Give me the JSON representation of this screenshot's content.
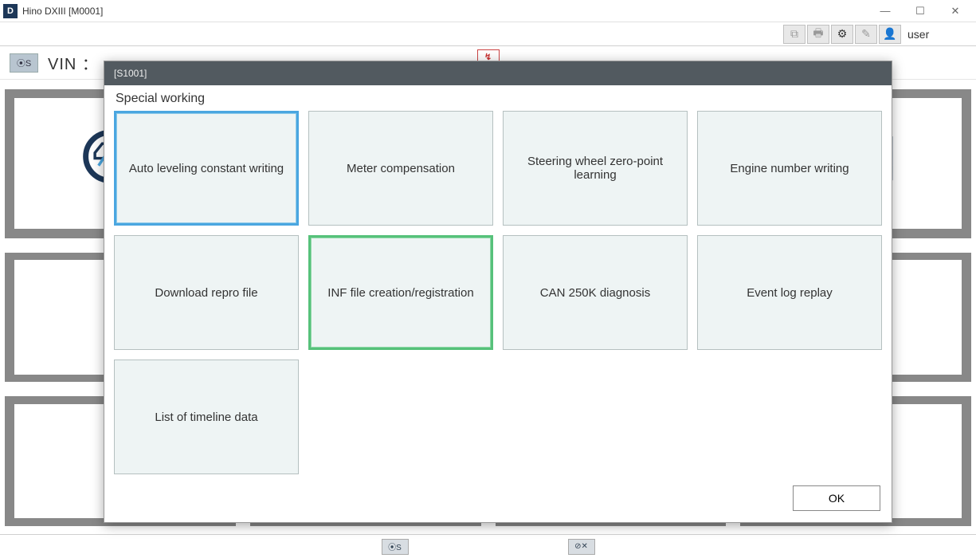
{
  "window": {
    "app_icon_letter": "D",
    "title": "Hino DXIII [M0001]"
  },
  "toolbar": {
    "icons": [
      {
        "name": "chart-icon",
        "glyph": "⧉",
        "dim": true
      },
      {
        "name": "print-icon",
        "glyph": "🖶",
        "dim": true
      },
      {
        "name": "gear-icon",
        "glyph": "⚙",
        "dim": false
      },
      {
        "name": "note-icon",
        "glyph": "✎",
        "dim": true
      },
      {
        "name": "user-icon",
        "glyph": "👤",
        "dim": false,
        "user": true
      }
    ],
    "user_label": "user"
  },
  "vin": {
    "icon_text": "⦿S",
    "label": "VIN ："
  },
  "center_tab": {
    "glyph": "↯"
  },
  "statusbar": {
    "left": "⦿S",
    "right": "⊘✕"
  },
  "modal": {
    "header_code": "[S1001]",
    "subtitle": "Special working",
    "options": [
      {
        "label": "Auto leveling constant writing",
        "highlight": "blue"
      },
      {
        "label": "Meter compensation",
        "highlight": "none"
      },
      {
        "label": "Steering wheel zero-point learning",
        "highlight": "none"
      },
      {
        "label": "Engine number writing",
        "highlight": "none"
      },
      {
        "label": "Download repro file",
        "highlight": "none"
      },
      {
        "label": "INF file creation/registration",
        "highlight": "green"
      },
      {
        "label": "CAN 250K diagnosis",
        "highlight": "none"
      },
      {
        "label": "Event log replay",
        "highlight": "none"
      },
      {
        "label": "List of timeline data",
        "highlight": "none"
      }
    ],
    "ok_label": "OK"
  },
  "colors": {
    "modal_header_bg": "#525a60",
    "option_bg": "#eef4f4",
    "option_border": "#b5c0c0",
    "blue_border": "#4aa6e0",
    "green_border": "#56c17a",
    "bg_tile": "#888888"
  }
}
